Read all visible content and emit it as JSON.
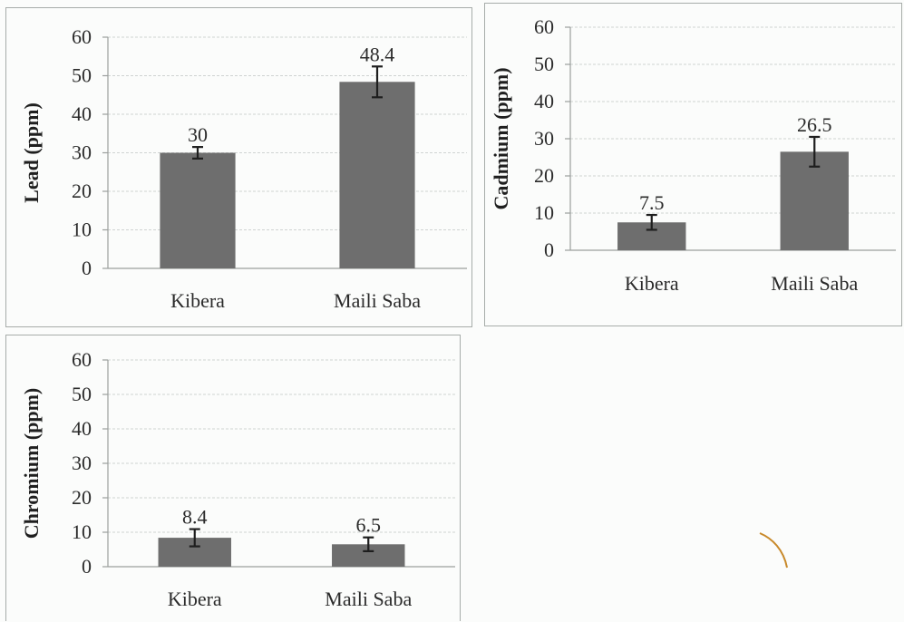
{
  "chart_data": [
    {
      "type": "bar",
      "categories": [
        "Kibera",
        "Maili Saba"
      ],
      "values": [
        30,
        48.4
      ],
      "error": [
        1.5,
        4
      ],
      "data_labels": [
        "30",
        "48.4"
      ],
      "ylabel": "Lead (ppm)",
      "xlabel": "",
      "ylim": [
        0,
        60
      ],
      "yticks": [
        "0",
        "10",
        "20",
        "30",
        "40",
        "50",
        "60"
      ],
      "grid": true,
      "bar_color": "#6e6e6e"
    },
    {
      "type": "bar",
      "categories": [
        "Kibera",
        "Maili Saba"
      ],
      "values": [
        7.5,
        26.5
      ],
      "error": [
        2,
        4
      ],
      "data_labels": [
        "7.5",
        "26.5"
      ],
      "ylabel": "Cadmium (ppm)",
      "xlabel": "",
      "ylim": [
        0,
        60
      ],
      "yticks": [
        "0",
        "10",
        "20",
        "30",
        "40",
        "50",
        "60"
      ],
      "grid": true,
      "bar_color": "#6e6e6e"
    },
    {
      "type": "bar",
      "categories": [
        "Kibera",
        "Maili Saba"
      ],
      "values": [
        8.4,
        6.5
      ],
      "error": [
        2.5,
        2
      ],
      "data_labels": [
        "8.4",
        "6.5"
      ],
      "ylabel": "Chromium (ppm)",
      "xlabel": "",
      "ylim": [
        0,
        60
      ],
      "yticks": [
        "0",
        "10",
        "20",
        "30",
        "40",
        "50",
        "60"
      ],
      "grid": true,
      "bar_color": "#6e6e6e"
    }
  ]
}
